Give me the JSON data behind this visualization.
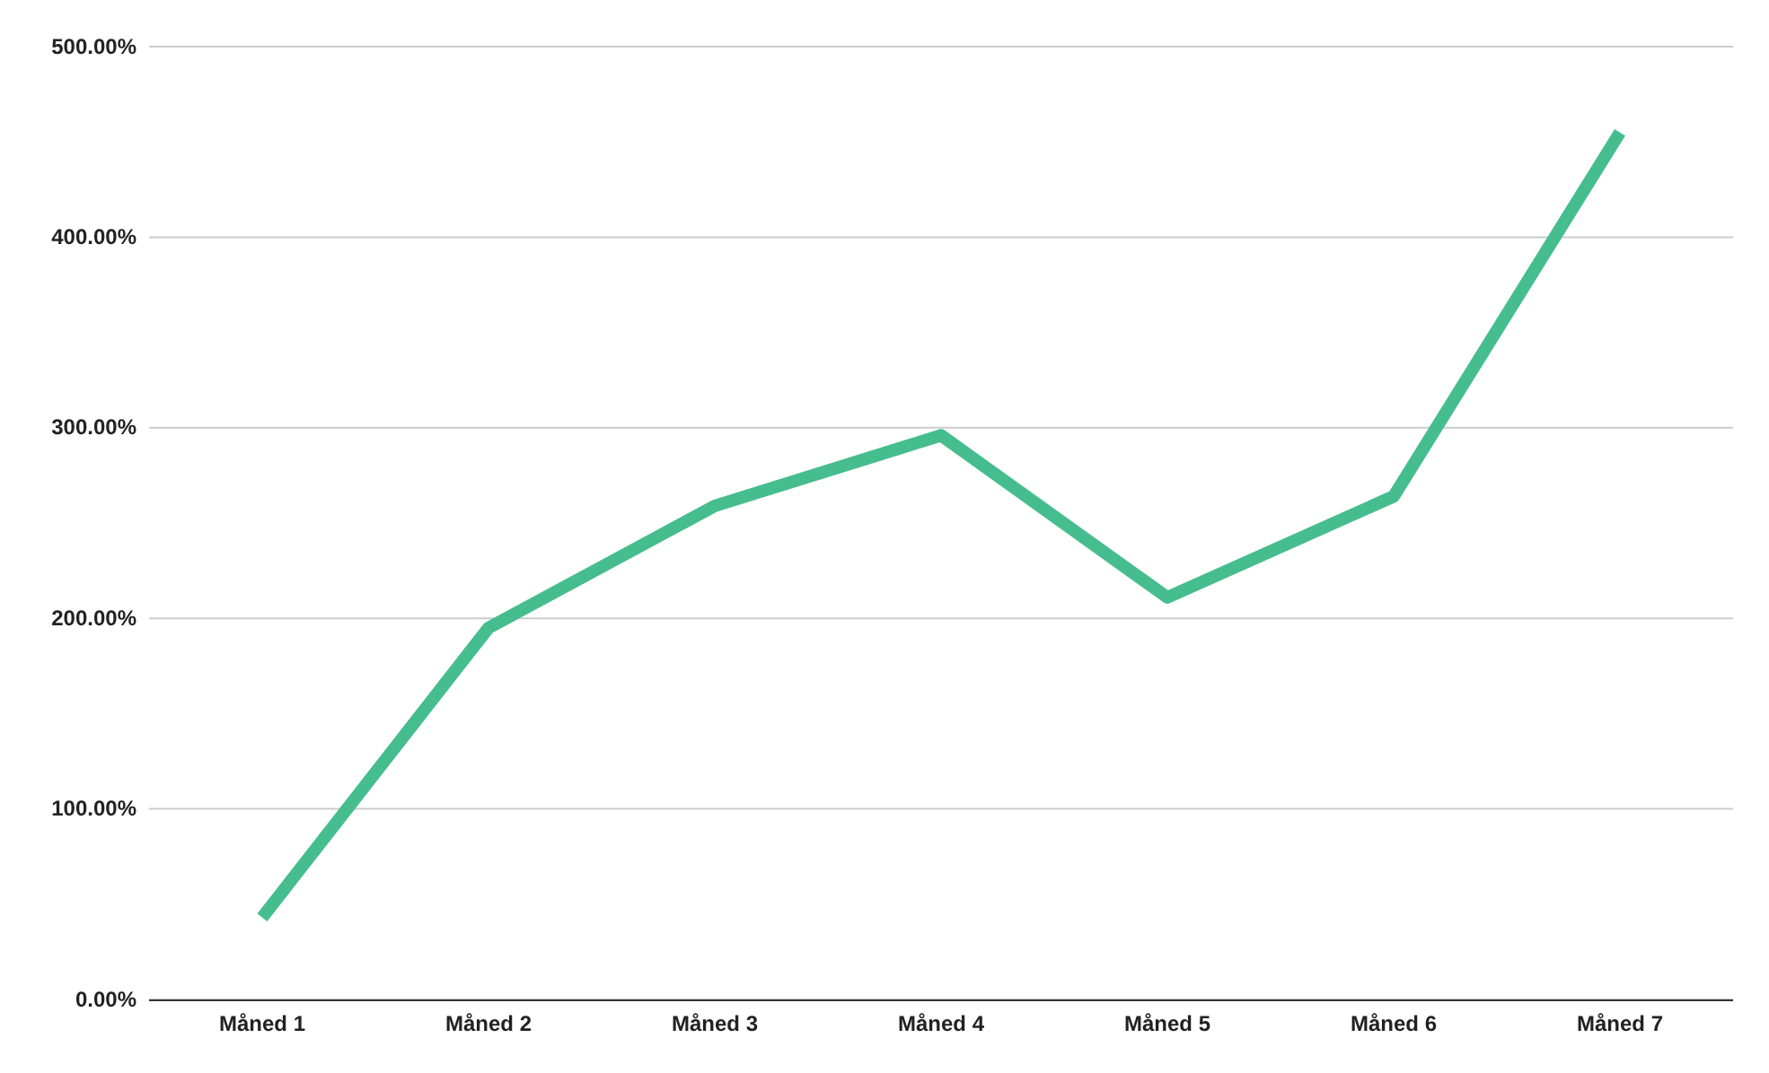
{
  "chart_data": {
    "type": "line",
    "categories": [
      "Måned 1",
      "Måned 2",
      "Måned 3",
      "Måned 4",
      "Måned 5",
      "Måned 6",
      "Måned 7"
    ],
    "series": [
      {
        "color": "#46bd8f",
        "values": [
          43,
          195,
          259,
          296,
          211,
          264,
          455
        ]
      }
    ],
    "ylim": [
      0,
      500
    ],
    "yticks": [
      {
        "value": 0,
        "label": "0.00%"
      },
      {
        "value": 100,
        "label": "100.00%"
      },
      {
        "value": 200,
        "label": "200.00%"
      },
      {
        "value": 300,
        "label": "300.00%"
      },
      {
        "value": 400,
        "label": "400.00%"
      },
      {
        "value": 500,
        "label": "500.00%"
      }
    ],
    "grid": "y",
    "marker": "none",
    "line_style": "solid"
  }
}
